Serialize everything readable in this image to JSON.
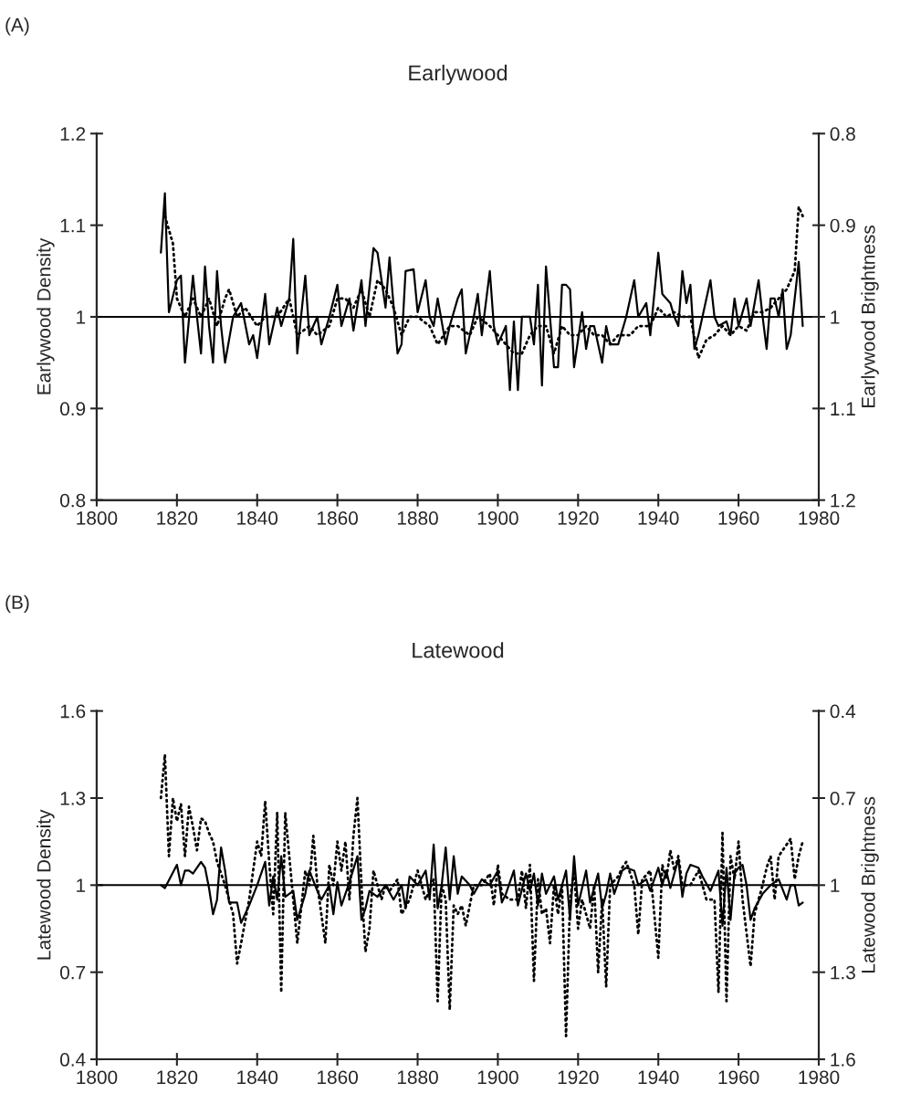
{
  "chart_data": [
    {
      "type": "line",
      "title": "Earlywood",
      "ylabel": "Earlywood Density",
      "y2label": "Earlywood Brightness",
      "annotations": [
        "(A)"
      ],
      "xlim": [
        1800,
        1980
      ],
      "xticks": [
        1800,
        1820,
        1840,
        1860,
        1880,
        1900,
        1920,
        1940,
        1960,
        1980
      ],
      "ylim": [
        0.8,
        1.2
      ],
      "yticks": [
        0.8,
        0.9,
        1,
        1.1,
        1.2
      ],
      "y2lim": [
        1.2,
        0.8
      ],
      "y2ticks": [
        0.8,
        0.9,
        1,
        1.1,
        1.2
      ],
      "grid": false,
      "legend": false,
      "ref_lines": [
        {
          "axis": "y",
          "value": 1,
          "color": "#000000"
        }
      ],
      "series": [
        {
          "color": "#000000",
          "line_style": "solid",
          "x": [
            1816,
            1817,
            1818,
            1820,
            1821,
            1822,
            1824,
            1825,
            1826,
            1827,
            1828,
            1829,
            1830,
            1831,
            1832,
            1834,
            1836,
            1838,
            1839,
            1840,
            1842,
            1843,
            1845,
            1846,
            1848,
            1849,
            1850,
            1852,
            1853,
            1855,
            1856,
            1858,
            1860,
            1861,
            1863,
            1864,
            1866,
            1867,
            1869,
            1870,
            1871,
            1872,
            1873,
            1875,
            1876,
            1877,
            1879,
            1880,
            1882,
            1883,
            1884,
            1885,
            1887,
            1888,
            1890,
            1891,
            1892,
            1894,
            1895,
            1896,
            1898,
            1899,
            1900,
            1902,
            1903,
            1904,
            1905,
            1906,
            1908,
            1909,
            1910,
            1911,
            1912,
            1913,
            1914,
            1915,
            1916,
            1917,
            1918,
            1919,
            1921,
            1922,
            1923,
            1924,
            1926,
            1927,
            1928,
            1930,
            1932,
            1934,
            1935,
            1937,
            1938,
            1940,
            1941,
            1943,
            1944,
            1945,
            1946,
            1947,
            1948,
            1949,
            1950,
            1953,
            1954,
            1955,
            1957,
            1958,
            1959,
            1960,
            1962,
            1963,
            1965,
            1966,
            1967,
            1968,
            1969,
            1970,
            1971,
            1972,
            1973,
            1975,
            1976
          ],
          "values": [
            1.07,
            1.135,
            1.005,
            1.04,
            1.045,
            0.95,
            1.045,
            1.0,
            0.96,
            1.055,
            0.99,
            0.95,
            1.05,
            0.99,
            0.95,
            1.0,
            1.015,
            0.97,
            0.98,
            0.955,
            1.025,
            0.97,
            1.01,
            0.99,
            1.02,
            1.085,
            0.96,
            1.045,
            0.98,
            1.0,
            0.97,
            1.0,
            1.035,
            0.99,
            1.02,
            0.985,
            1.04,
            0.99,
            1.075,
            1.07,
            1.04,
            1.01,
            1.065,
            0.96,
            0.97,
            1.05,
            1.052,
            1.005,
            1.04,
            1.0,
            0.99,
            1.02,
            0.97,
            0.99,
            1.02,
            1.03,
            0.96,
            1.0,
            1.025,
            0.98,
            1.05,
            0.99,
            0.97,
            0.99,
            0.92,
            0.995,
            0.92,
            1.0,
            1.0,
            0.97,
            1.035,
            0.925,
            1.055,
            1.0,
            0.945,
            0.945,
            1.035,
            1.035,
            1.03,
            0.945,
            1.005,
            0.965,
            0.99,
            0.99,
            0.95,
            0.99,
            0.97,
            0.97,
            1.0,
            1.04,
            1.0,
            1.015,
            0.98,
            1.07,
            1.025,
            1.015,
            1.0,
            0.99,
            1.05,
            1.015,
            1.035,
            0.965,
            0.98,
            1.04,
            1.0,
            0.99,
            0.995,
            0.98,
            1.02,
            0.99,
            1.02,
            0.99,
            1.04,
            1.0,
            0.965,
            1.02,
            1.02,
            1.0,
            1.03,
            0.965,
            0.98,
            1.06,
            0.99
          ]
        },
        {
          "color": "#000000",
          "line_style": "dotted",
          "axis": "y2",
          "x": [
            1817,
            1819,
            1820,
            1822,
            1824,
            1826,
            1828,
            1830,
            1832,
            1833,
            1835,
            1837,
            1840,
            1842,
            1845,
            1848,
            1850,
            1853,
            1855,
            1858,
            1860,
            1862,
            1864,
            1866,
            1868,
            1870,
            1872,
            1874,
            1876,
            1878,
            1880,
            1883,
            1885,
            1888,
            1890,
            1893,
            1895,
            1898,
            1900,
            1902,
            1904,
            1906,
            1908,
            1910,
            1912,
            1914,
            1916,
            1918,
            1920,
            1922,
            1924,
            1926,
            1928,
            1930,
            1933,
            1935,
            1938,
            1940,
            1942,
            1944,
            1946,
            1948,
            1950,
            1952,
            1954,
            1956,
            1958,
            1960,
            1962,
            1964,
            1966,
            1968,
            1970,
            1972,
            1974,
            1975,
            1976
          ],
          "values": [
            0.89,
            0.92,
            0.98,
            1.0,
            0.98,
            1.0,
            0.98,
            1.01,
            0.98,
            0.97,
            1.0,
            0.99,
            1.01,
            1.0,
            1.0,
            0.98,
            1.02,
            1.01,
            1.02,
            1.01,
            0.98,
            0.98,
            0.99,
            0.97,
            1.0,
            0.96,
            0.97,
            0.99,
            1.02,
            1.0,
            1.0,
            1.01,
            1.03,
            1.01,
            1.01,
            1.02,
            1.0,
            1.01,
            1.02,
            1.03,
            1.04,
            1.04,
            1.02,
            1.01,
            1.01,
            1.04,
            1.01,
            1.02,
            1.02,
            1.01,
            1.02,
            1.02,
            1.03,
            1.02,
            1.02,
            1.01,
            1.01,
            0.99,
            1.0,
            0.995,
            1.0,
            1.0,
            1.045,
            1.025,
            1.02,
            1.01,
            1.02,
            1.01,
            1.015,
            0.995,
            0.995,
            0.99,
            0.98,
            0.97,
            0.95,
            0.88,
            0.89
          ]
        }
      ]
    },
    {
      "type": "line",
      "title": "Latewood",
      "ylabel": "Latewood Density",
      "y2label": "Latewood Brightness",
      "annotations": [
        "(B)"
      ],
      "xlim": [
        1800,
        1980
      ],
      "xticks": [
        1800,
        1820,
        1840,
        1860,
        1880,
        1900,
        1920,
        1940,
        1960,
        1980
      ],
      "ylim": [
        0.4,
        1.6
      ],
      "yticks": [
        0.4,
        0.7,
        1,
        1.3,
        1.6
      ],
      "y2lim": [
        1.6,
        0.4
      ],
      "y2ticks": [
        0.4,
        0.7,
        1,
        1.3,
        1.6
      ],
      "grid": false,
      "legend": false,
      "ref_lines": [
        {
          "axis": "y",
          "value": 1,
          "color": "#000000"
        }
      ],
      "series": [
        {
          "color": "#000000",
          "line_style": "solid",
          "x": [
            1816,
            1817,
            1820,
            1821,
            1822,
            1823,
            1824,
            1826,
            1827,
            1828,
            1829,
            1830,
            1831,
            1832,
            1833,
            1835,
            1836,
            1838,
            1840,
            1842,
            1843,
            1844,
            1845,
            1846,
            1847,
            1849,
            1850,
            1852,
            1853,
            1855,
            1856,
            1858,
            1859,
            1860,
            1861,
            1863,
            1865,
            1866,
            1867,
            1868,
            1870,
            1872,
            1874,
            1876,
            1877,
            1878,
            1880,
            1882,
            1883,
            1884,
            1885,
            1886,
            1887,
            1888,
            1889,
            1890,
            1891,
            1893,
            1894,
            1896,
            1898,
            1900,
            1901,
            1902,
            1904,
            1905,
            1907,
            1908,
            1909,
            1910,
            1911,
            1912,
            1914,
            1915,
            1917,
            1918,
            1919,
            1920,
            1922,
            1923,
            1925,
            1926,
            1927,
            1928,
            1929,
            1931,
            1932,
            1934,
            1935,
            1937,
            1938,
            1940,
            1941,
            1942,
            1943,
            1945,
            1946,
            1947,
            1948,
            1950,
            1951,
            1953,
            1955,
            1956,
            1957,
            1958,
            1959,
            1960,
            1961,
            1962,
            1963,
            1964,
            1966,
            1968,
            1970,
            1972,
            1973,
            1974,
            1975,
            1976
          ],
          "values": [
            1.0,
            0.99,
            1.07,
            1.0,
            1.05,
            1.05,
            1.04,
            1.08,
            1.06,
            0.99,
            0.9,
            0.95,
            1.13,
            1.05,
            0.94,
            0.94,
            0.87,
            0.93,
            1.0,
            1.08,
            0.93,
            1.03,
            0.95,
            1.1,
            0.96,
            0.98,
            0.88,
            0.97,
            1.05,
            0.98,
            0.95,
            1.0,
            0.9,
            1.01,
            0.93,
            1.01,
            1.1,
            0.88,
            0.92,
            0.98,
            0.96,
            1.0,
            0.95,
            1.0,
            0.92,
            1.03,
            1.0,
            1.05,
            0.95,
            1.14,
            0.92,
            1.0,
            1.13,
            0.95,
            1.1,
            0.97,
            1.03,
            1.0,
            0.97,
            1.02,
            1.0,
            1.05,
            0.94,
            0.97,
            1.05,
            0.93,
            1.04,
            0.98,
            1.04,
            0.93,
            1.04,
            0.97,
            1.03,
            0.95,
            1.05,
            0.88,
            1.1,
            0.93,
            1.05,
            0.94,
            1.04,
            0.92,
            0.97,
            1.04,
            0.97,
            1.05,
            1.06,
            1.05,
            1.0,
            1.02,
            0.98,
            1.06,
            1.0,
            1.05,
            0.99,
            1.09,
            0.96,
            1.04,
            1.07,
            1.06,
            1.03,
            0.98,
            1.05,
            0.86,
            1.06,
            0.88,
            1.04,
            1.06,
            1.07,
            1.0,
            0.88,
            0.92,
            0.97,
            1.0,
            1.02,
            0.95,
            1.0,
            1.0,
            0.93,
            0.94
          ]
        },
        {
          "color": "#000000",
          "line_style": "dotted",
          "axis": "y2",
          "x": [
            1816,
            1817,
            1818,
            1819,
            1820,
            1821,
            1822,
            1823,
            1824,
            1825,
            1826,
            1827,
            1828,
            1829,
            1830,
            1832,
            1834,
            1835,
            1836,
            1838,
            1840,
            1841,
            1842,
            1843,
            1844,
            1845,
            1846,
            1847,
            1848,
            1849,
            1850,
            1852,
            1853,
            1854,
            1855,
            1857,
            1858,
            1859,
            1860,
            1861,
            1862,
            1863,
            1864,
            1865,
            1866,
            1867,
            1868,
            1869,
            1871,
            1872,
            1873,
            1875,
            1876,
            1878,
            1880,
            1882,
            1884,
            1885,
            1886,
            1887,
            1888,
            1889,
            1890,
            1891,
            1892,
            1894,
            1896,
            1898,
            1899,
            1900,
            1901,
            1903,
            1905,
            1906,
            1907,
            1908,
            1909,
            1910,
            1911,
            1912,
            1913,
            1914,
            1915,
            1916,
            1917,
            1918,
            1919,
            1920,
            1921,
            1923,
            1924,
            1925,
            1926,
            1927,
            1928,
            1930,
            1931,
            1932,
            1934,
            1935,
            1936,
            1938,
            1939,
            1940,
            1941,
            1942,
            1943,
            1944,
            1945,
            1946,
            1948,
            1950,
            1952,
            1954,
            1955,
            1956,
            1957,
            1958,
            1959,
            1960,
            1961,
            1963,
            1964,
            1966,
            1967,
            1968,
            1969,
            1970,
            1972,
            1973,
            1974,
            1975,
            1976
          ],
          "values": [
            0.7,
            0.55,
            0.9,
            0.7,
            0.78,
            0.72,
            0.9,
            0.73,
            0.8,
            0.88,
            0.77,
            0.78,
            0.82,
            0.85,
            0.92,
            1.0,
            1.1,
            1.27,
            1.2,
            1.05,
            0.85,
            0.9,
            0.71,
            0.92,
            1.1,
            0.75,
            1.37,
            0.75,
            0.9,
            1.05,
            1.2,
            0.95,
            1.0,
            0.83,
            1.0,
            1.2,
            0.93,
            1.0,
            0.85,
            0.95,
            0.85,
            1.05,
            0.83,
            0.7,
            1.0,
            1.23,
            1.15,
            0.95,
            1.05,
            1.0,
            1.02,
            0.98,
            1.1,
            1.05,
            0.95,
            1.05,
            0.98,
            1.4,
            1.0,
            1.05,
            1.43,
            1.07,
            1.1,
            1.07,
            1.14,
            1.0,
            1.0,
            0.96,
            1.07,
            0.93,
            1.03,
            1.05,
            1.05,
            0.95,
            1.08,
            0.93,
            1.33,
            0.98,
            1.1,
            1.08,
            1.2,
            1.0,
            1.1,
            1.0,
            1.52,
            1.05,
            0.95,
            1.15,
            1.05,
            1.15,
            1.0,
            1.3,
            1.05,
            1.35,
            1.0,
            0.97,
            0.94,
            0.92,
            1.0,
            1.17,
            0.98,
            0.95,
            1.1,
            1.25,
            0.93,
            0.98,
            0.88,
            0.95,
            0.9,
            1.0,
            1.0,
            0.95,
            1.05,
            1.05,
            1.37,
            0.82,
            1.4,
            0.9,
            0.98,
            0.85,
            1.05,
            1.28,
            1.1,
            1.0,
            0.94,
            0.9,
            1.05,
            0.9,
            0.86,
            0.84,
            0.98,
            0.9,
            0.85
          ]
        }
      ]
    }
  ]
}
